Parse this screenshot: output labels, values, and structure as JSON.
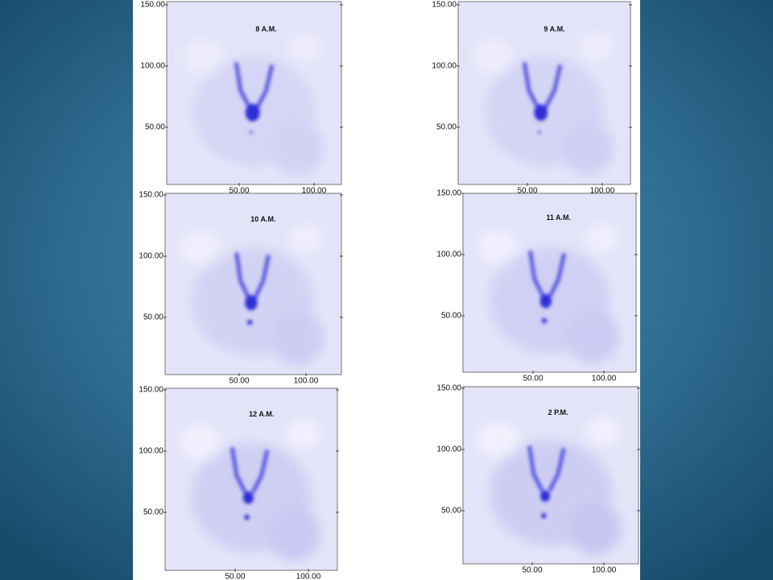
{
  "panels": [
    {
      "title": "8 A.M.",
      "xticks": [
        {
          "value": 50,
          "label": "50.00"
        },
        {
          "value": 100,
          "label": "100.00"
        }
      ],
      "yticks": [
        {
          "value": 50,
          "label": "50.00"
        },
        {
          "value": 100,
          "label": "100.00"
        },
        {
          "value": 150,
          "label": "150.00"
        }
      ]
    },
    {
      "title": "9 A.M.",
      "xticks": [
        {
          "value": 50,
          "label": "50.00"
        },
        {
          "value": 100,
          "label": "100.00"
        }
      ],
      "yticks": [
        {
          "value": 50,
          "label": "50.00"
        },
        {
          "value": 100,
          "label": "100.00"
        },
        {
          "value": 150,
          "label": "150.00"
        }
      ]
    },
    {
      "title": "10 A.M.",
      "xticks": [
        {
          "value": 50,
          "label": "50.00"
        },
        {
          "value": 100,
          "label": "100.00"
        }
      ],
      "yticks": [
        {
          "value": 50,
          "label": "50.00"
        },
        {
          "value": 100,
          "label": "100.00"
        },
        {
          "value": 150,
          "label": "150.00"
        }
      ]
    },
    {
      "title": "11 A.M.",
      "xticks": [
        {
          "value": 50,
          "label": "50.00"
        },
        {
          "value": 100,
          "label": "100.00"
        }
      ],
      "yticks": [
        {
          "value": 50,
          "label": "50.00"
        },
        {
          "value": 100,
          "label": "100.00"
        },
        {
          "value": 150,
          "label": "150.00"
        }
      ]
    },
    {
      "title": "12 A.M.",
      "xticks": [
        {
          "value": 50,
          "label": "50.00"
        },
        {
          "value": 100,
          "label": "100.00"
        }
      ],
      "yticks": [
        {
          "value": 50,
          "label": "50.00"
        },
        {
          "value": 100,
          "label": "100.00"
        },
        {
          "value": 150,
          "label": "150.00"
        }
      ]
    },
    {
      "title": "2 P.M.",
      "xticks": [
        {
          "value": 50,
          "label": "50.00"
        },
        {
          "value": 100,
          "label": "100.00"
        }
      ],
      "yticks": [
        {
          "value": 50,
          "label": "50.00"
        },
        {
          "value": 100,
          "label": "100.00"
        },
        {
          "value": 150,
          "label": "150.00"
        }
      ]
    }
  ]
}
